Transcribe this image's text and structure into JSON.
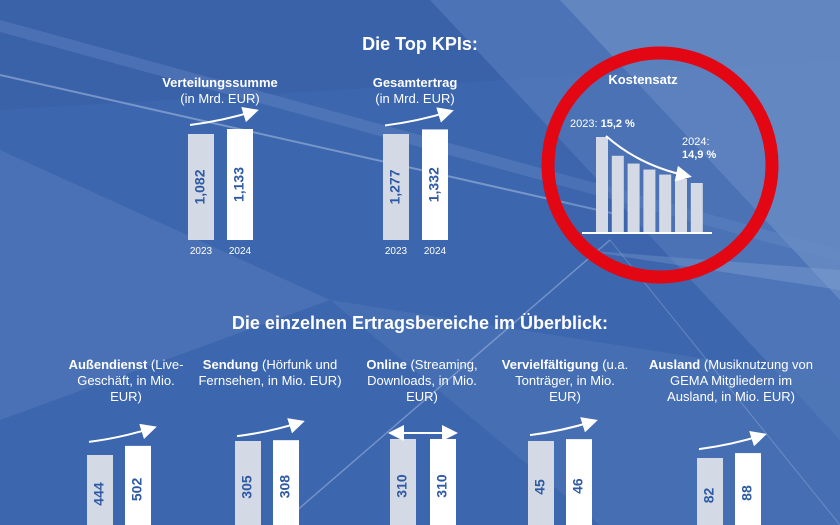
{
  "headings": {
    "top_kpis": "Die Top KPIs:",
    "segments": "Die einzelnen Ertragsbereiche im Überblick:"
  },
  "colors": {
    "background": "#3c66ad",
    "bar_prev": "#d4d9e6",
    "bar_curr": "#ffffff",
    "value_text": "#2e5aa3",
    "circle": "#e30613",
    "arrow": "#ffffff"
  },
  "kpis": {
    "verteilung": {
      "title": "Verteilungssumme",
      "subtitle": "(in Mrd. EUR)"
    },
    "gesamtertrag": {
      "title": "Gesamtertrag",
      "subtitle": "(in Mrd. EUR)"
    },
    "kostensatz": {
      "title": "Kostensatz",
      "label_2023_prefix": "2023: ",
      "label_2023_value": "15,2 %",
      "label_2024_prefix": "2024:",
      "label_2024_value": "14,9 %"
    }
  },
  "segments": {
    "aussendienst": {
      "title": "Außendienst",
      "rest": "(Live-Geschäft, in Mio. EUR)"
    },
    "sendung": {
      "title": "Sendung",
      "rest": "(Hörfunk und Fernsehen, in Mio. EUR)"
    },
    "online": {
      "title": "Online",
      "rest": "(Streaming, Downloads, in Mio. EUR)"
    },
    "vervielfaeltigung": {
      "title": "Vervielfältigung",
      "rest": "(u.a. Tonträger, in Mio. EUR)"
    },
    "ausland": {
      "title": "Ausland",
      "rest": "(Musiknutzung von GEMA Mitgliedern im Ausland, in Mio. EUR)"
    }
  },
  "chart_data": [
    {
      "type": "bar",
      "id": "verteilungssumme",
      "title": "Verteilungssumme",
      "ylabel": "(in Mrd. EUR)",
      "categories": [
        "2023",
        "2024"
      ],
      "values": [
        1.082,
        1.133
      ],
      "value_labels": [
        "1,082",
        "1,133"
      ]
    },
    {
      "type": "bar",
      "id": "gesamtertrag",
      "title": "Gesamtertrag",
      "ylabel": "(in Mrd. EUR)",
      "categories": [
        "2023",
        "2024"
      ],
      "values": [
        1.277,
        1.332
      ],
      "value_labels": [
        "1,277",
        "1,332"
      ]
    },
    {
      "type": "bar",
      "id": "kostensatz",
      "title": "Kostensatz",
      "categories": [
        "2023",
        "2024"
      ],
      "values": [
        15.2,
        14.9
      ],
      "unit": "%"
    },
    {
      "type": "bar",
      "id": "aussendienst",
      "title": "Außendienst",
      "values": [
        444,
        502
      ],
      "value_labels": [
        "444",
        "502"
      ]
    },
    {
      "type": "bar",
      "id": "sendung",
      "title": "Sendung",
      "values": [
        305,
        308
      ],
      "value_labels": [
        "305",
        "308"
      ]
    },
    {
      "type": "bar",
      "id": "online",
      "title": "Online",
      "values": [
        310,
        310
      ],
      "value_labels": [
        "310",
        "310"
      ]
    },
    {
      "type": "bar",
      "id": "vervielfaeltigung",
      "title": "Vervielfältigung",
      "values": [
        45,
        46
      ],
      "value_labels": [
        "45",
        "46"
      ]
    },
    {
      "type": "bar",
      "id": "ausland",
      "title": "Ausland",
      "values": [
        82,
        88
      ],
      "value_labels": [
        "82",
        "88"
      ]
    }
  ]
}
